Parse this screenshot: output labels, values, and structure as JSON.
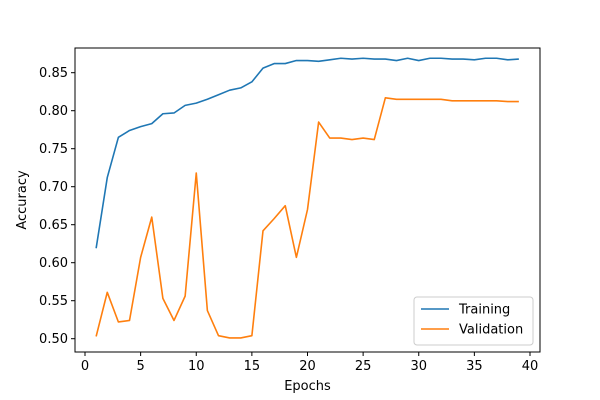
{
  "chart_data": {
    "type": "line",
    "xlabel": "Epochs",
    "ylabel": "Accuracy",
    "xlim": [
      -0.9,
      40.9
    ],
    "ylim": [
      0.4825,
      0.8825
    ],
    "xticks": [
      0,
      5,
      10,
      15,
      20,
      25,
      30,
      35,
      40
    ],
    "yticks": [
      0.5,
      0.55,
      0.6,
      0.65,
      0.7,
      0.75,
      0.8,
      0.85
    ],
    "xtick_labels": [
      "0",
      "5",
      "10",
      "15",
      "20",
      "25",
      "30",
      "35",
      "40"
    ],
    "ytick_labels": [
      "0.50",
      "0.55",
      "0.60",
      "0.65",
      "0.70",
      "0.75",
      "0.80",
      "0.85"
    ],
    "grid": false,
    "legend_position": "lower-right",
    "x": [
      1,
      2,
      3,
      4,
      5,
      6,
      7,
      8,
      9,
      10,
      11,
      12,
      13,
      14,
      15,
      16,
      17,
      18,
      19,
      20,
      21,
      22,
      23,
      24,
      25,
      26,
      27,
      28,
      29,
      30,
      31,
      32,
      33,
      34,
      35,
      36,
      37,
      38,
      39
    ],
    "series": [
      {
        "name": "Training",
        "color": "#1f77b4",
        "values": [
          0.619,
          0.712,
          0.765,
          0.774,
          0.779,
          0.783,
          0.796,
          0.797,
          0.807,
          0.81,
          0.815,
          0.821,
          0.827,
          0.83,
          0.838,
          0.856,
          0.862,
          0.862,
          0.866,
          0.866,
          0.865,
          0.867,
          0.869,
          0.868,
          0.869,
          0.868,
          0.868,
          0.866,
          0.869,
          0.866,
          0.869,
          0.869,
          0.868,
          0.868,
          0.867,
          0.869,
          0.869,
          0.867,
          0.868
        ]
      },
      {
        "name": "Validation",
        "color": "#ff7f0e",
        "values": [
          0.503,
          0.561,
          0.522,
          0.524,
          0.607,
          0.66,
          0.553,
          0.524,
          0.556,
          0.718,
          0.537,
          0.504,
          0.501,
          0.501,
          0.504,
          0.642,
          0.658,
          0.675,
          0.607,
          0.67,
          0.785,
          0.764,
          0.764,
          0.762,
          0.764,
          0.762,
          0.817,
          0.815,
          0.815,
          0.815,
          0.815,
          0.815,
          0.813,
          0.813,
          0.813,
          0.813,
          0.813,
          0.812,
          0.812
        ]
      }
    ]
  }
}
